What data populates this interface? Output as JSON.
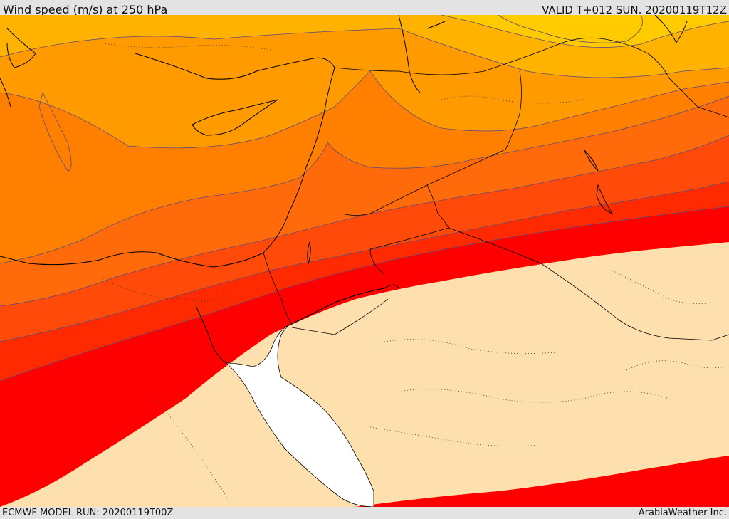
{
  "header": {
    "title": "Wind speed (m/s) at 250 hPa",
    "valid_time": "VALID T+012 SUN. 20200119T12Z"
  },
  "footer": {
    "model_run": "ECMWF MODEL RUN: 20200119T00Z",
    "credit": "ArabiaWeather Inc."
  },
  "map": {
    "variable": "Wind speed",
    "units": "m/s",
    "level": "250 hPa",
    "region": "Eastern Mediterranean and Middle East",
    "colors": {
      "band_lowest": "#fde0ad",
      "band_1": "#ff0000",
      "band_2": "#ff2a00",
      "band_3": "#ff4a0a",
      "band_4": "#ff6a0a",
      "band_5": "#ff8000",
      "band_6": "#ff9a00",
      "band_7": "#ffb300",
      "band_8": "#ffca00",
      "band_highest": "#ffe400",
      "sea": "#ffffff",
      "coastline": "#000000",
      "contour": "#5e4a7a"
    }
  }
}
